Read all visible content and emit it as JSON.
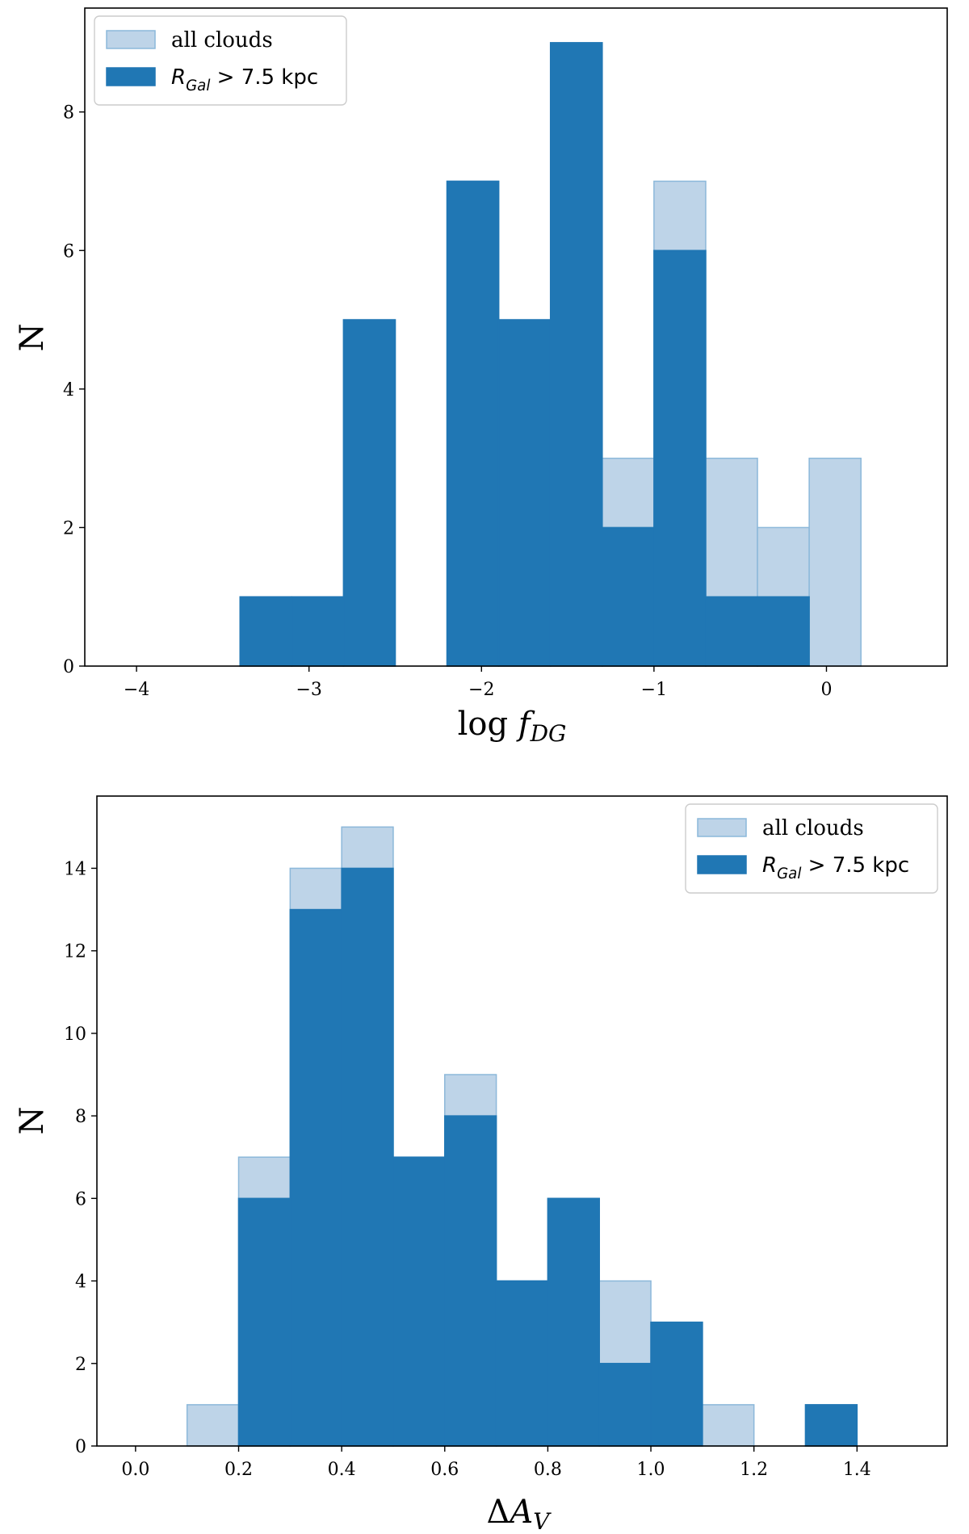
{
  "colors": {
    "all_fill": "#bed4e8",
    "all_edge": "#8cb8da",
    "sub_fill": "#2077b4",
    "sub_edge": "#2077b4"
  },
  "chart_data": [
    {
      "type": "bar",
      "title": "",
      "xlabel": {
        "prefix": "log ",
        "symbol": "f",
        "subscript": "DG"
      },
      "ylabel": "N",
      "xlim": [
        -4.3,
        0.7
      ],
      "ylim": [
        0,
        9.5
      ],
      "xticks": [
        -4,
        -3,
        -2,
        -1,
        0
      ],
      "xtick_labels": [
        "−4",
        "−3",
        "−2",
        "−1",
        "0"
      ],
      "yticks": [
        0,
        2,
        4,
        6,
        8
      ],
      "ytick_labels": [
        "0",
        "2",
        "4",
        "6",
        "8"
      ],
      "bin_edges": [
        -4.0,
        -3.7,
        -3.4,
        -3.1,
        -2.8,
        -2.5,
        -2.2,
        -1.9,
        -1.6,
        -1.3,
        -1.0,
        -0.7,
        -0.4,
        -0.1,
        0.2
      ],
      "series": [
        {
          "name": "all clouds",
          "values": [
            0,
            0,
            1,
            1,
            5,
            0,
            7,
            5,
            9,
            3,
            7,
            3,
            2,
            3
          ]
        },
        {
          "name": "R_Gal > 7.5 kpc",
          "values": [
            0,
            0,
            1,
            1,
            5,
            0,
            7,
            5,
            9,
            2,
            6,
            1,
            1,
            0
          ]
        }
      ],
      "legend": {
        "position": "upper-left",
        "entries": [
          {
            "label": "all clouds"
          },
          {
            "symbol": "R",
            "subscript": "Gal",
            "label_rest": " > 7.5 kpc"
          }
        ]
      }
    },
    {
      "type": "bar",
      "title": "",
      "xlabel": {
        "prefix": "Δ",
        "symbol": "A",
        "subscript": "V"
      },
      "ylabel": "N",
      "xlim": [
        -0.075,
        1.575
      ],
      "ylim": [
        0,
        15.75
      ],
      "xticks": [
        0.0,
        0.2,
        0.4,
        0.6,
        0.8,
        1.0,
        1.2,
        1.4
      ],
      "xtick_labels": [
        "0.0",
        "0.2",
        "0.4",
        "0.6",
        "0.8",
        "1.0",
        "1.2",
        "1.4"
      ],
      "yticks": [
        0,
        2,
        4,
        6,
        8,
        10,
        12,
        14
      ],
      "ytick_labels": [
        "0",
        "2",
        "4",
        "6",
        "8",
        "10",
        "12",
        "14"
      ],
      "bin_edges": [
        0.0,
        0.1,
        0.2,
        0.3,
        0.4,
        0.5,
        0.6,
        0.7,
        0.8,
        0.9,
        1.0,
        1.1,
        1.2,
        1.3,
        1.4
      ],
      "series": [
        {
          "name": "all clouds",
          "values": [
            0,
            1,
            7,
            14,
            15,
            7,
            9,
            4,
            6,
            4,
            3,
            1,
            0,
            1
          ]
        },
        {
          "name": "R_Gal > 7.5 kpc",
          "values": [
            0,
            0,
            6,
            13,
            14,
            7,
            8,
            4,
            6,
            2,
            3,
            0,
            0,
            1
          ]
        }
      ],
      "legend": {
        "position": "upper-right",
        "entries": [
          {
            "label": "all clouds"
          },
          {
            "symbol": "R",
            "subscript": "Gal",
            "label_rest": " > 7.5 kpc"
          }
        ]
      }
    }
  ]
}
